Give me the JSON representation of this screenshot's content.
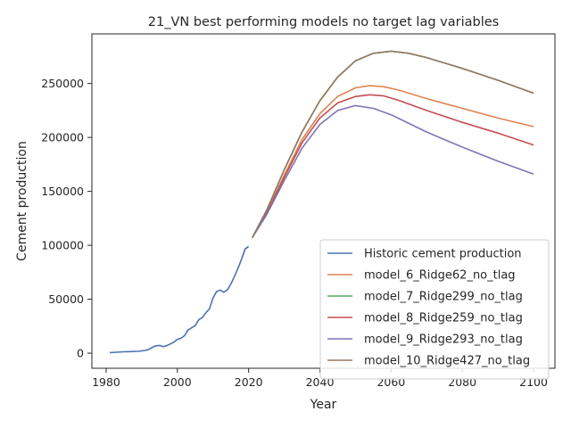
{
  "chart_data": {
    "type": "line",
    "title": "21_VN best performing models no target lag variables",
    "xlabel": "Year",
    "ylabel": "Cement production",
    "xlim": [
      1976,
      2106
    ],
    "ylim": [
      -14000,
      296000
    ],
    "xticks": [
      1980,
      2000,
      2020,
      2040,
      2060,
      2080,
      2100
    ],
    "yticks": [
      0,
      50000,
      100000,
      150000,
      200000,
      250000
    ],
    "grid": false,
    "legend_position": "lower-right",
    "series": [
      {
        "name": "Historic cement production",
        "color": "#4c72b0",
        "x": [
          1981,
          1983,
          1985,
          1987,
          1989,
          1991,
          1992,
          1993,
          1994,
          1995,
          1996,
          1997,
          1998,
          1999,
          2000,
          2001,
          2002,
          2003,
          2004,
          2005,
          2006,
          2007,
          2008,
          2009,
          2010,
          2011,
          2012,
          2013,
          2014,
          2015,
          2016,
          2017,
          2018,
          2019,
          2020
        ],
        "y": [
          500,
          900,
          1300,
          1500,
          1700,
          2500,
          3500,
          5500,
          6800,
          7200,
          6000,
          7000,
          8500,
          10200,
          12800,
          13800,
          16200,
          21500,
          23500,
          25500,
          31000,
          33000,
          37500,
          41000,
          51000,
          57000,
          58500,
          56500,
          58500,
          64000,
          71000,
          78500,
          87000,
          96500,
          99000
        ]
      },
      {
        "name": "model_6_Ridge62_no_tlag",
        "color": "#dd8452",
        "x": [
          2021,
          2025,
          2030,
          2035,
          2040,
          2045,
          2050,
          2054,
          2058,
          2062,
          2070,
          2080,
          2090,
          2100
        ],
        "y": [
          107000,
          130000,
          165000,
          198000,
          222000,
          238000,
          246000,
          248000,
          247000,
          244000,
          236000,
          227000,
          218000,
          210000
        ]
      },
      {
        "name": "model_7_Ridge299_no_tlag",
        "color": "#55a868",
        "x": [
          2021,
          2025,
          2030,
          2035,
          2040,
          2045,
          2050,
          2055,
          2060,
          2065,
          2070,
          2080,
          2090,
          2100
        ],
        "y": [
          107000,
          132000,
          170000,
          205000,
          234000,
          256000,
          271000,
          278000,
          280000,
          278000,
          274000,
          264000,
          253000,
          241000
        ]
      },
      {
        "name": "model_8_Ridge259_no_tlag",
        "color": "#c44e52",
        "x": [
          2021,
          2025,
          2030,
          2035,
          2040,
          2045,
          2050,
          2054,
          2058,
          2062,
          2070,
          2080,
          2090,
          2100
        ],
        "y": [
          107000,
          129000,
          163000,
          195000,
          218000,
          232000,
          238000,
          239500,
          238500,
          234500,
          225000,
          214000,
          204000,
          193000
        ]
      },
      {
        "name": "model_9_Ridge293_no_tlag",
        "color": "#8172b3",
        "x": [
          2021,
          2025,
          2030,
          2035,
          2040,
          2045,
          2050,
          2055,
          2060,
          2065,
          2070,
          2080,
          2090,
          2100
        ],
        "y": [
          107000,
          128000,
          160000,
          190000,
          212000,
          225000,
          229500,
          227000,
          221000,
          213000,
          205000,
          191000,
          178000,
          166000
        ]
      },
      {
        "name": "model_10_Ridge427_no_tlag",
        "color": "#937860",
        "x": [
          2021,
          2025,
          2030,
          2035,
          2040,
          2045,
          2050,
          2055,
          2060,
          2065,
          2070,
          2080,
          2090,
          2100
        ],
        "y": [
          107000,
          132000,
          170000,
          205000,
          234000,
          256000,
          271000,
          278000,
          280000,
          278000,
          274000,
          264000,
          253000,
          241000
        ]
      }
    ]
  }
}
